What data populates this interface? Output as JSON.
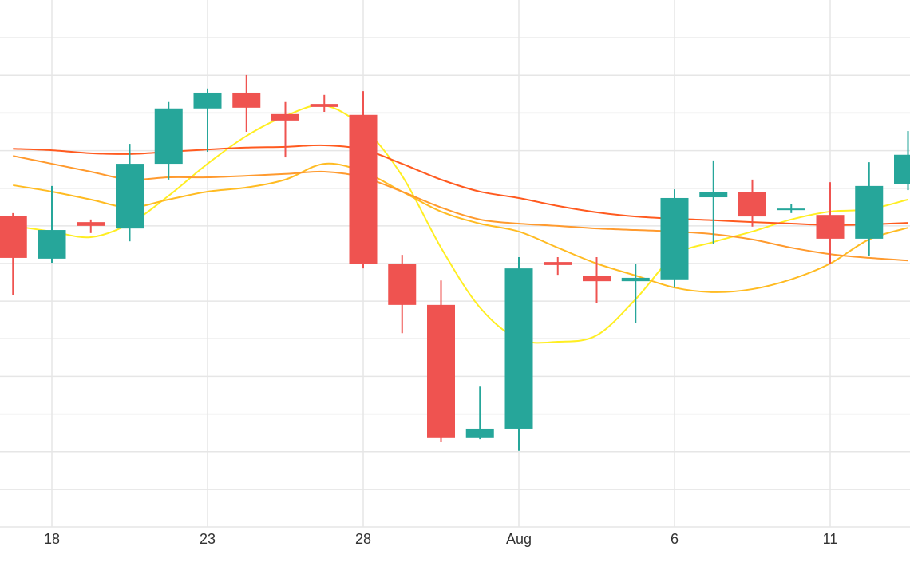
{
  "chart_data": {
    "type": "candlestick",
    "categories": [
      null,
      "18",
      null,
      null,
      null,
      "23",
      null,
      null,
      null,
      "28",
      null,
      null,
      null,
      "Aug",
      null,
      null,
      null,
      "6",
      null,
      null,
      null,
      "11",
      null,
      null
    ],
    "open": [
      8.27,
      7.13,
      8.1,
      7.93,
      9.65,
      11.12,
      11.54,
      10.97,
      11.24,
      10.95,
      7.0,
      5.9,
      2.38,
      2.61,
      7.04,
      6.68,
      6.53,
      6.58,
      8.76,
      8.89,
      8.42,
      8.29,
      7.66,
      9.12
    ],
    "high": [
      8.34,
      9.06,
      8.17,
      10.18,
      11.29,
      11.65,
      12.01,
      11.29,
      11.48,
      11.58,
      7.23,
      6.55,
      3.75,
      7.17,
      7.17,
      7.17,
      6.98,
      8.97,
      9.74,
      9.23,
      8.57,
      9.16,
      9.69,
      10.52
    ],
    "low": [
      6.17,
      7.02,
      7.81,
      7.59,
      9.23,
      9.97,
      10.5,
      9.82,
      11.03,
      6.87,
      5.15,
      2.27,
      2.33,
      2.02,
      6.7,
      5.96,
      5.43,
      6.36,
      7.51,
      7.98,
      8.34,
      7.0,
      7.19,
      8.95
    ],
    "close": [
      7.15,
      7.89,
      8.0,
      9.65,
      11.12,
      11.54,
      11.14,
      10.8,
      11.16,
      6.98,
      5.9,
      2.38,
      2.61,
      6.87,
      6.96,
      6.53,
      6.62,
      8.74,
      8.89,
      8.25,
      8.46,
      7.66,
      9.06,
      9.89
    ],
    "up_color": "#26a69a",
    "down_color": "#ef5350",
    "series": [
      {
        "color": "#ffee22",
        "values": [
          8.0,
          7.85,
          7.7,
          8.06,
          8.8,
          9.65,
          10.39,
          10.92,
          11.2,
          10.61,
          9.33,
          7.42,
          5.83,
          4.99,
          4.92,
          5.09,
          6.05,
          7.21,
          7.57,
          7.85,
          8.17,
          8.38,
          8.44,
          8.7
        ]
      },
      {
        "color": "#ffbb22",
        "values": [
          9.08,
          8.91,
          8.7,
          8.49,
          8.7,
          8.91,
          9.02,
          9.23,
          9.65,
          9.44,
          8.91,
          8.38,
          8.06,
          7.85,
          7.42,
          7.0,
          6.68,
          6.36,
          6.24,
          6.32,
          6.58,
          7.0,
          7.64,
          7.95
        ]
      },
      {
        "color": "#ff9a2e",
        "values": [
          9.86,
          9.65,
          9.44,
          9.23,
          9.29,
          9.29,
          9.33,
          9.38,
          9.44,
          9.29,
          8.91,
          8.49,
          8.17,
          8.06,
          8.0,
          7.93,
          7.89,
          7.85,
          7.78,
          7.64,
          7.42,
          7.25,
          7.15,
          7.08
        ]
      },
      {
        "color": "#ff5a1f",
        "values": [
          10.05,
          10.01,
          9.93,
          9.91,
          9.97,
          10.03,
          10.08,
          10.1,
          10.14,
          10.03,
          9.65,
          9.23,
          8.91,
          8.74,
          8.53,
          8.36,
          8.25,
          8.19,
          8.15,
          8.1,
          8.06,
          8.02,
          8.04,
          8.08
        ]
      }
    ],
    "ylim": [
      0,
      14
    ],
    "yticks": [
      1,
      2,
      3,
      4,
      5,
      6,
      7,
      8,
      9,
      10,
      11,
      12,
      13
    ],
    "grid": true
  }
}
